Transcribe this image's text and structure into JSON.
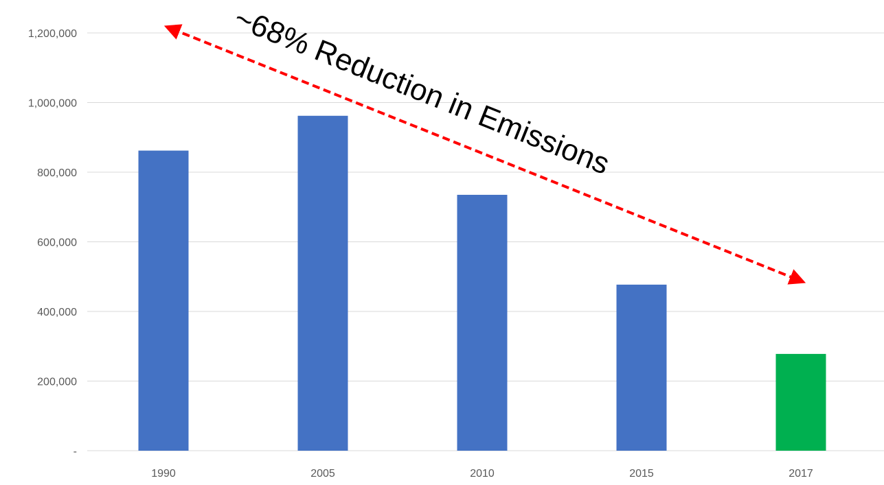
{
  "chart_data": {
    "type": "bar",
    "title": "",
    "xlabel": "",
    "ylabel": "",
    "categories": [
      "1990",
      "2005",
      "2010",
      "2015",
      "2017"
    ],
    "values": [
      862000,
      962000,
      735000,
      477000,
      278000
    ],
    "bar_colors": [
      "#4472C4",
      "#4472C4",
      "#4472C4",
      "#4472C4",
      "#00B050"
    ],
    "ylim": [
      0,
      1200000
    ],
    "y_ticks": [
      0,
      200000,
      400000,
      600000,
      800000,
      1000000,
      1200000
    ],
    "y_tick_labels": [
      "-",
      "200,000",
      "400,000",
      "600,000",
      "800,000",
      "1,000,000",
      "1,200,000"
    ],
    "grid": true,
    "legend": "none",
    "annotation": {
      "text": "~68% Reduction in Emissions",
      "arrow": "double-headed, dashed",
      "arrow_color": "#FF0000"
    }
  }
}
